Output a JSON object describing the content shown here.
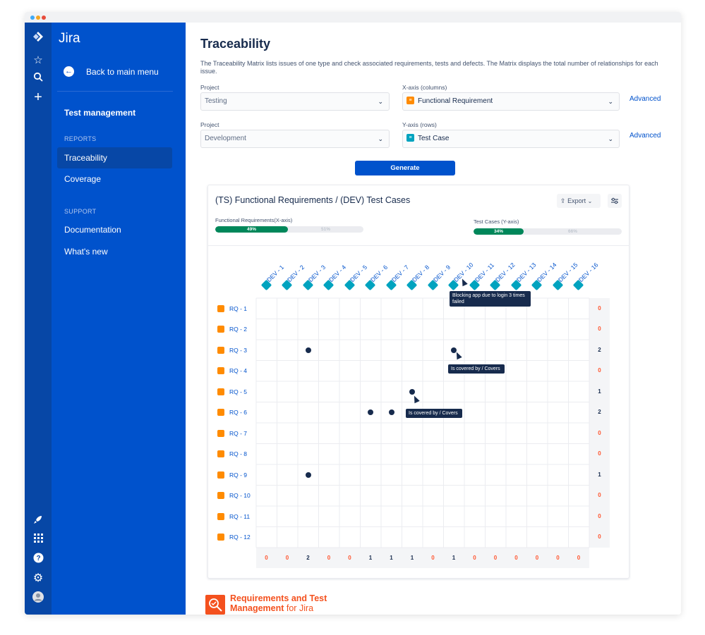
{
  "app": {
    "name": "Jira",
    "window_dots": [
      "#3fa9f5",
      "#f5a623",
      "#e74c3c"
    ]
  },
  "sidebar": {
    "back_label": "Back to main menu",
    "section_title": "Test management",
    "reports_heading": "REPORTS",
    "reports_items": [
      {
        "label": "Traceability",
        "active": true
      },
      {
        "label": "Coverage",
        "active": false
      }
    ],
    "support_heading": "SUPPORT",
    "support_items": [
      {
        "label": "Documentation"
      },
      {
        "label": "What's new"
      }
    ]
  },
  "rail_icons": [
    "jira-logo-icon",
    "star-icon",
    "search-icon",
    "plus-icon",
    "rocket-icon",
    "apps-grid-icon",
    "help-icon",
    "settings-icon",
    "avatar-icon"
  ],
  "page": {
    "title": "Traceability",
    "description": "The Traceability Matrix lists issues of one type and check associated requirements, tests and defects. The Matrix displays the total number of relationships for each issue."
  },
  "filters": {
    "project1_label": "Project",
    "project1_value": "Testing",
    "xaxis_label": "X-axis (columns)",
    "xaxis_value": "Functional Requirement",
    "project2_label": "Project",
    "project2_value": "Development",
    "yaxis_label": "Y-axis (rows)",
    "yaxis_value": "Test Case",
    "advanced_label": "Advanced",
    "generate_label": "Generate"
  },
  "matrix": {
    "title": "(TS) Functional Requirements / (DEV) Test Cases",
    "export_label": "Export",
    "x_progress": {
      "label": "Functional Requirements(X-axis)",
      "done": "49%",
      "rest": "51%",
      "fraction": 0.49
    },
    "y_progress": {
      "label": "Test Cases (Y-axis)",
      "done": "34%",
      "rest": "66%",
      "fraction": 0.34
    },
    "columns": [
      "DEV - 1",
      "DEV - 2",
      "DEV - 3",
      "DEV - 4",
      "DEV - 5",
      "DEV - 6",
      "DEV - 7",
      "DEV - 8",
      "DEV - 9",
      "DEV - 10",
      "DEV - 11",
      "DEV - 12",
      "DEV - 13",
      "DEV - 14",
      "DEV - 15",
      "DEV - 16"
    ],
    "rows": [
      "RQ - 1",
      "RQ - 2",
      "RQ - 3",
      "RQ - 4",
      "RQ - 5",
      "RQ - 6",
      "RQ - 7",
      "RQ - 8",
      "RQ - 9",
      "RQ - 10",
      "RQ - 11",
      "RQ - 12"
    ],
    "links": [
      [
        2,
        2
      ],
      [
        2,
        9
      ],
      [
        4,
        7
      ],
      [
        5,
        5
      ],
      [
        5,
        6
      ],
      [
        8,
        2
      ]
    ],
    "row_totals": [
      "0",
      "0",
      "2",
      "0",
      "1",
      "2",
      "0",
      "0",
      "1",
      "0",
      "0",
      "0"
    ],
    "col_totals": [
      "0",
      "0",
      "2",
      "0",
      "0",
      "1",
      "1",
      "1",
      "0",
      "1",
      "0",
      "0",
      "0",
      "0",
      "0",
      "0"
    ],
    "tooltips": [
      {
        "text": "Blocking app due to login 3 times failed"
      },
      {
        "text": "Is covered by / Covers"
      },
      {
        "text": "Is covered by / Covers"
      }
    ],
    "colors": {
      "zero": "#ff5630",
      "nonzero": "#172b4d",
      "header_ic": "#00a3bf",
      "row_ic": "#ff8b00",
      "progress": "#00875a"
    }
  },
  "brand": {
    "line1": "Requirements and Test",
    "line2_bold": "Management",
    "line2_rest": " for Jira"
  }
}
